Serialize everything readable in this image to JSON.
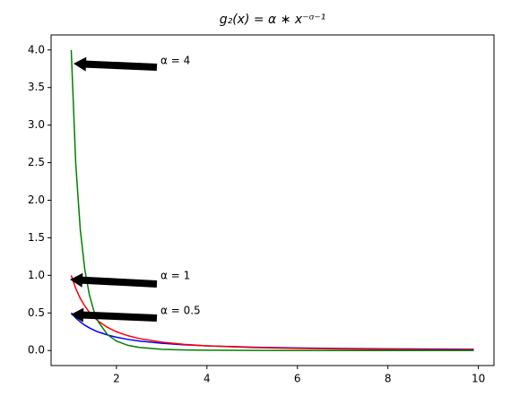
{
  "chart_data": {
    "type": "line",
    "title": "g₂(x) = α ∗ x⁻ᵅ⁻¹",
    "x": [
      1,
      1.1,
      1.2,
      1.3,
      1.4,
      1.5,
      1.6,
      1.8,
      2,
      2.25,
      2.5,
      3,
      3.5,
      4,
      5,
      6,
      7,
      8,
      9,
      9.9
    ],
    "series": [
      {
        "name": "α = 0.5",
        "color": "#0000ff",
        "values": [
          0.5,
          0.4334,
          0.3804,
          0.3373,
          0.3018,
          0.2722,
          0.247,
          0.207,
          0.1768,
          0.1481,
          0.1265,
          0.0962,
          0.0764,
          0.0625,
          0.0447,
          0.034,
          0.027,
          0.0221,
          0.0185,
          0.0161
        ]
      },
      {
        "name": "α = 1",
        "color": "#ff0000",
        "values": [
          1,
          0.8264,
          0.6944,
          0.5917,
          0.5102,
          0.4444,
          0.3906,
          0.3086,
          0.25,
          0.1975,
          0.16,
          0.1111,
          0.0816,
          0.0625,
          0.04,
          0.0278,
          0.0204,
          0.0156,
          0.0123,
          0.0102
        ]
      },
      {
        "name": "α = 4",
        "color": "#008000",
        "values": [
          4,
          2.4837,
          1.6075,
          1.0773,
          0.7437,
          0.5267,
          0.3815,
          0.2117,
          0.125,
          0.0694,
          0.041,
          0.0165,
          0.0076,
          0.0039,
          0.0013,
          0.0005,
          0.0002,
          0.0001,
          0.0001,
          0
        ]
      }
    ],
    "xlim": [
      0.555,
      10.345
    ],
    "ylim": [
      -0.2,
      4.2
    ],
    "xticks": [
      2,
      4,
      6,
      8,
      10
    ],
    "yticks": [
      {
        "value": 0,
        "label": "0.0"
      },
      {
        "value": 0.5,
        "label": "0.5"
      },
      {
        "value": 1,
        "label": "1.0"
      },
      {
        "value": 1.5,
        "label": "1.5"
      },
      {
        "value": 2,
        "label": "2.0"
      },
      {
        "value": 2.5,
        "label": "2.5"
      },
      {
        "value": 3,
        "label": "3.0"
      },
      {
        "value": 3.5,
        "label": "3.5"
      },
      {
        "value": 4,
        "label": "4.0"
      }
    ]
  }
}
